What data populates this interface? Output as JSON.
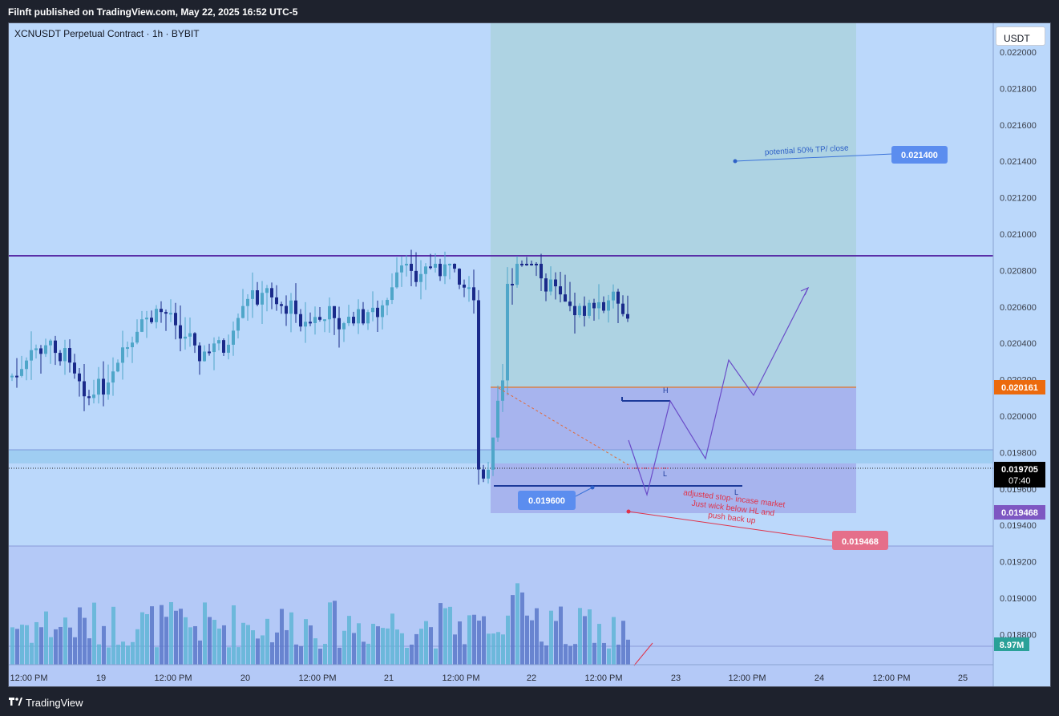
{
  "header": {
    "publisher": "Filnft published on TradingView.com, May 22, 2025 16:52 UTC-5"
  },
  "chart": {
    "symbol": "XCNUSDT Perpetual Contract · 1h · BYBIT",
    "currency_button": "USDT",
    "price_axis": [
      "0.022000",
      "0.021800",
      "0.021600",
      "0.021400",
      "0.021200",
      "0.021000",
      "0.020800",
      "0.020600",
      "0.020400",
      "0.020200",
      "0.020000",
      "0.019800",
      "0.019600",
      "0.019400",
      "0.019200",
      "0.019000",
      "0.018800"
    ],
    "time_axis": [
      "12:00 PM",
      "19",
      "12:00 PM",
      "20",
      "12:00 PM",
      "21",
      "12:00 PM",
      "22",
      "12:00 PM",
      "23",
      "12:00 PM",
      "24",
      "12:00 PM",
      "25"
    ],
    "labels": {
      "current_price": "0.019705",
      "countdown": "07:40",
      "target_price": "0.020161",
      "stop_axis": "0.019468",
      "volume": "8.97M",
      "tp_label": "0.021400",
      "entry_label": "0.019600",
      "stop_label": "0.019468"
    },
    "annotations": {
      "tp_note": "potential 50% TP/ close",
      "stop_note": [
        "adjusted stop- incase market",
        "Just wick below HL and",
        "push back up"
      ],
      "h_mark": "H",
      "l_mark_1": "L",
      "l_mark_2": "L"
    },
    "colors": {
      "bull": "#4fa6c9",
      "bear": "#1a2a8a",
      "profit_zone": "#aed3e3",
      "loss_zone": "#a7b4ee",
      "purple_line": "#5a2fa8",
      "target_badge": "#ec6a0d",
      "stop_badge": "#e56f8a",
      "tp_badge": "#5b8def",
      "volume_badge": "#2aa198"
    }
  },
  "footer": {
    "brand": "TradingView"
  }
}
